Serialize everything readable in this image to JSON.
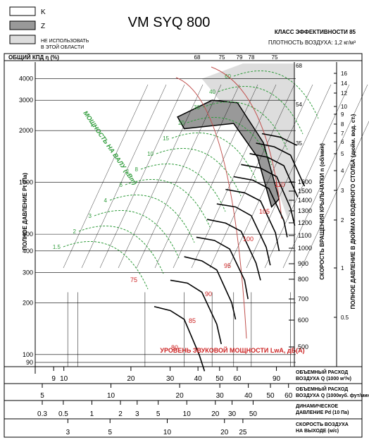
{
  "header": {
    "legend": [
      {
        "label": "K",
        "fill": "#ffffff"
      },
      {
        "label": "Z",
        "fill": "#999999"
      },
      {
        "label": "НЕ ИСПОЛЬЗОВАТЬ",
        "label2": "В ЭТОЙ ОБЛАСТИ",
        "fill": "#dddddd"
      }
    ],
    "model": "VM SYQ 800",
    "efficiency_class": "КЛАСС ЭФФЕКТИВНОСТИ 85",
    "air_density": "ПЛОТНОСТЬ ВОЗДУХА: 1,2 кг/м³"
  },
  "colors": {
    "efficiency": "#c0504d",
    "power": "#2e9b3a",
    "sound": "#cc2222",
    "grid": "#000000",
    "zone_z": "#999999",
    "zone_forbidden": "#dddddd"
  },
  "chart_data": {
    "type": "line",
    "title": "VM SYQ 800",
    "overall_efficiency_label": "ОБЩИЙ КПД η (%)",
    "efficiency_ticks": [
      "68",
      "75",
      "79",
      "78",
      "75"
    ],
    "ylabel": "ПОЛНОЕ ДАВЛЕНИЕ Pt (Па)",
    "ylim": [
      85,
      5000
    ],
    "yscale": "log",
    "yticks": [
      90,
      100,
      200,
      300,
      400,
      500,
      1000,
      2000,
      3000,
      4000
    ],
    "x_axes": [
      {
        "label": "ОБЪЕМНЫЙ РАСХОД",
        "label2": "ВОЗДУХА Q (1000 м³/ч)",
        "ticks": [
          9,
          10,
          20,
          30,
          40,
          50,
          60,
          90
        ],
        "range": [
          8,
          95
        ]
      },
      {
        "label": "ОБЪЕМНЫЙ РАСХОД",
        "label2": "ВОЗДУХА Q (1000куб. фут/мин)",
        "ticks": [
          5,
          10,
          20,
          30,
          40,
          50,
          60
        ],
        "range": [
          5,
          56
        ]
      },
      {
        "label": "ДИНАМИЧЕСКОЕ",
        "label2": "ДАВЛЕНИЕ Pd (10 Па)",
        "ticks": [
          "0.3",
          "0.5",
          "1",
          "2",
          "3",
          "5",
          "10",
          "20",
          "30",
          "50"
        ],
        "range": [
          0.3,
          100
        ]
      },
      {
        "label": "СКОРОСТЬ ВОЗДУХА",
        "label2": "НА ВЫХОДЕ (м/с)",
        "ticks": [
          3,
          5,
          10,
          20,
          25
        ],
        "range": [
          2.2,
          40
        ]
      }
    ],
    "speed_axis": {
      "label": "СКОРОСТЬ ВРАЩЕНИЯ КРЫЛЬЧАТКИ n (об/мин)",
      "values": [
        500,
        600,
        700,
        800,
        900,
        1000,
        1100,
        1200,
        1300,
        1400,
        1500,
        1600
      ]
    },
    "water_column_axis": {
      "label": "ПОЛНОЕ ДАВЛЕНИЕ В ДЮЙМАХ ВОДЯНОГО СТОЛБА (дюйм. вод. ст.)",
      "ticks": [
        "16",
        "14",
        "12",
        "10",
        "9",
        "8",
        "7",
        "6",
        "5",
        "4",
        "3",
        "2",
        "1",
        "0.5"
      ]
    },
    "power_label": "МОЩНОСТЬ НА ВАЛУ (кВт)",
    "power_values": [
      "1.5",
      "2",
      "3",
      "4",
      "6",
      "8",
      "10",
      "15",
      "20",
      "30",
      "40",
      "60"
    ],
    "sound_label": "УРОВЕНЬ ЗВУКОВОЙ МОЩНОСТИ LwA, дБ(А)",
    "sound_values": [
      "75",
      "80",
      "85",
      "90",
      "95",
      "100",
      "105",
      "110"
    ],
    "efficiency_right_ticks": [
      "68",
      "54",
      "35"
    ],
    "fan_curves": [
      {
        "rpm": 500,
        "values": [
          [
            22,
            190
          ],
          [
            26,
            180
          ],
          [
            30,
            160
          ],
          [
            35,
            100
          ],
          [
            37,
            80
          ]
        ]
      },
      {
        "rpm": 600,
        "values": [
          [
            26,
            270
          ],
          [
            31,
            260
          ],
          [
            36,
            230
          ],
          [
            42,
            150
          ],
          [
            44,
            115
          ]
        ]
      },
      {
        "rpm": 700,
        "values": [
          [
            30,
            370
          ],
          [
            36,
            350
          ],
          [
            42,
            310
          ],
          [
            49,
            200
          ],
          [
            51,
            160
          ]
        ]
      },
      {
        "rpm": 800,
        "values": [
          [
            34,
            480
          ],
          [
            41,
            460
          ],
          [
            48,
            410
          ],
          [
            56,
            270
          ],
          [
            58,
            210
          ]
        ]
      },
      {
        "rpm": 900,
        "values": [
          [
            38,
            610
          ],
          [
            46,
            580
          ],
          [
            54,
            520
          ],
          [
            63,
            340
          ],
          [
            66,
            270
          ]
        ]
      },
      {
        "rpm": 1000,
        "values": [
          [
            42,
            750
          ],
          [
            51,
            720
          ],
          [
            60,
            640
          ],
          [
            70,
            420
          ],
          [
            73,
            330
          ]
        ]
      },
      {
        "rpm": 1100,
        "values": [
          [
            46,
            910
          ],
          [
            56,
            870
          ],
          [
            66,
            780
          ],
          [
            77,
            510
          ],
          [
            80,
            400
          ]
        ]
      },
      {
        "rpm": 1200,
        "values": [
          [
            50,
            1080
          ],
          [
            61,
            1030
          ],
          [
            72,
            920
          ],
          [
            84,
            600
          ],
          [
            87,
            480
          ]
        ]
      },
      {
        "rpm": 1300,
        "values": [
          [
            54,
            1270
          ],
          [
            66,
            1210
          ],
          [
            78,
            1080
          ],
          [
            90,
            710
          ],
          [
            94,
            560
          ]
        ]
      },
      {
        "rpm": 1400,
        "values": [
          [
            59,
            1470
          ],
          [
            71,
            1400
          ],
          [
            84,
            1250
          ],
          [
            97,
            820
          ]
        ]
      },
      {
        "rpm": 1500,
        "values": [
          [
            63,
            1690
          ],
          [
            76,
            1610
          ],
          [
            90,
            1440
          ],
          [
            104,
            950
          ]
        ]
      },
      {
        "rpm": 1600,
        "values": [
          [
            67,
            1920
          ],
          [
            81,
            1830
          ],
          [
            96,
            1640
          ]
        ]
      }
    ]
  }
}
